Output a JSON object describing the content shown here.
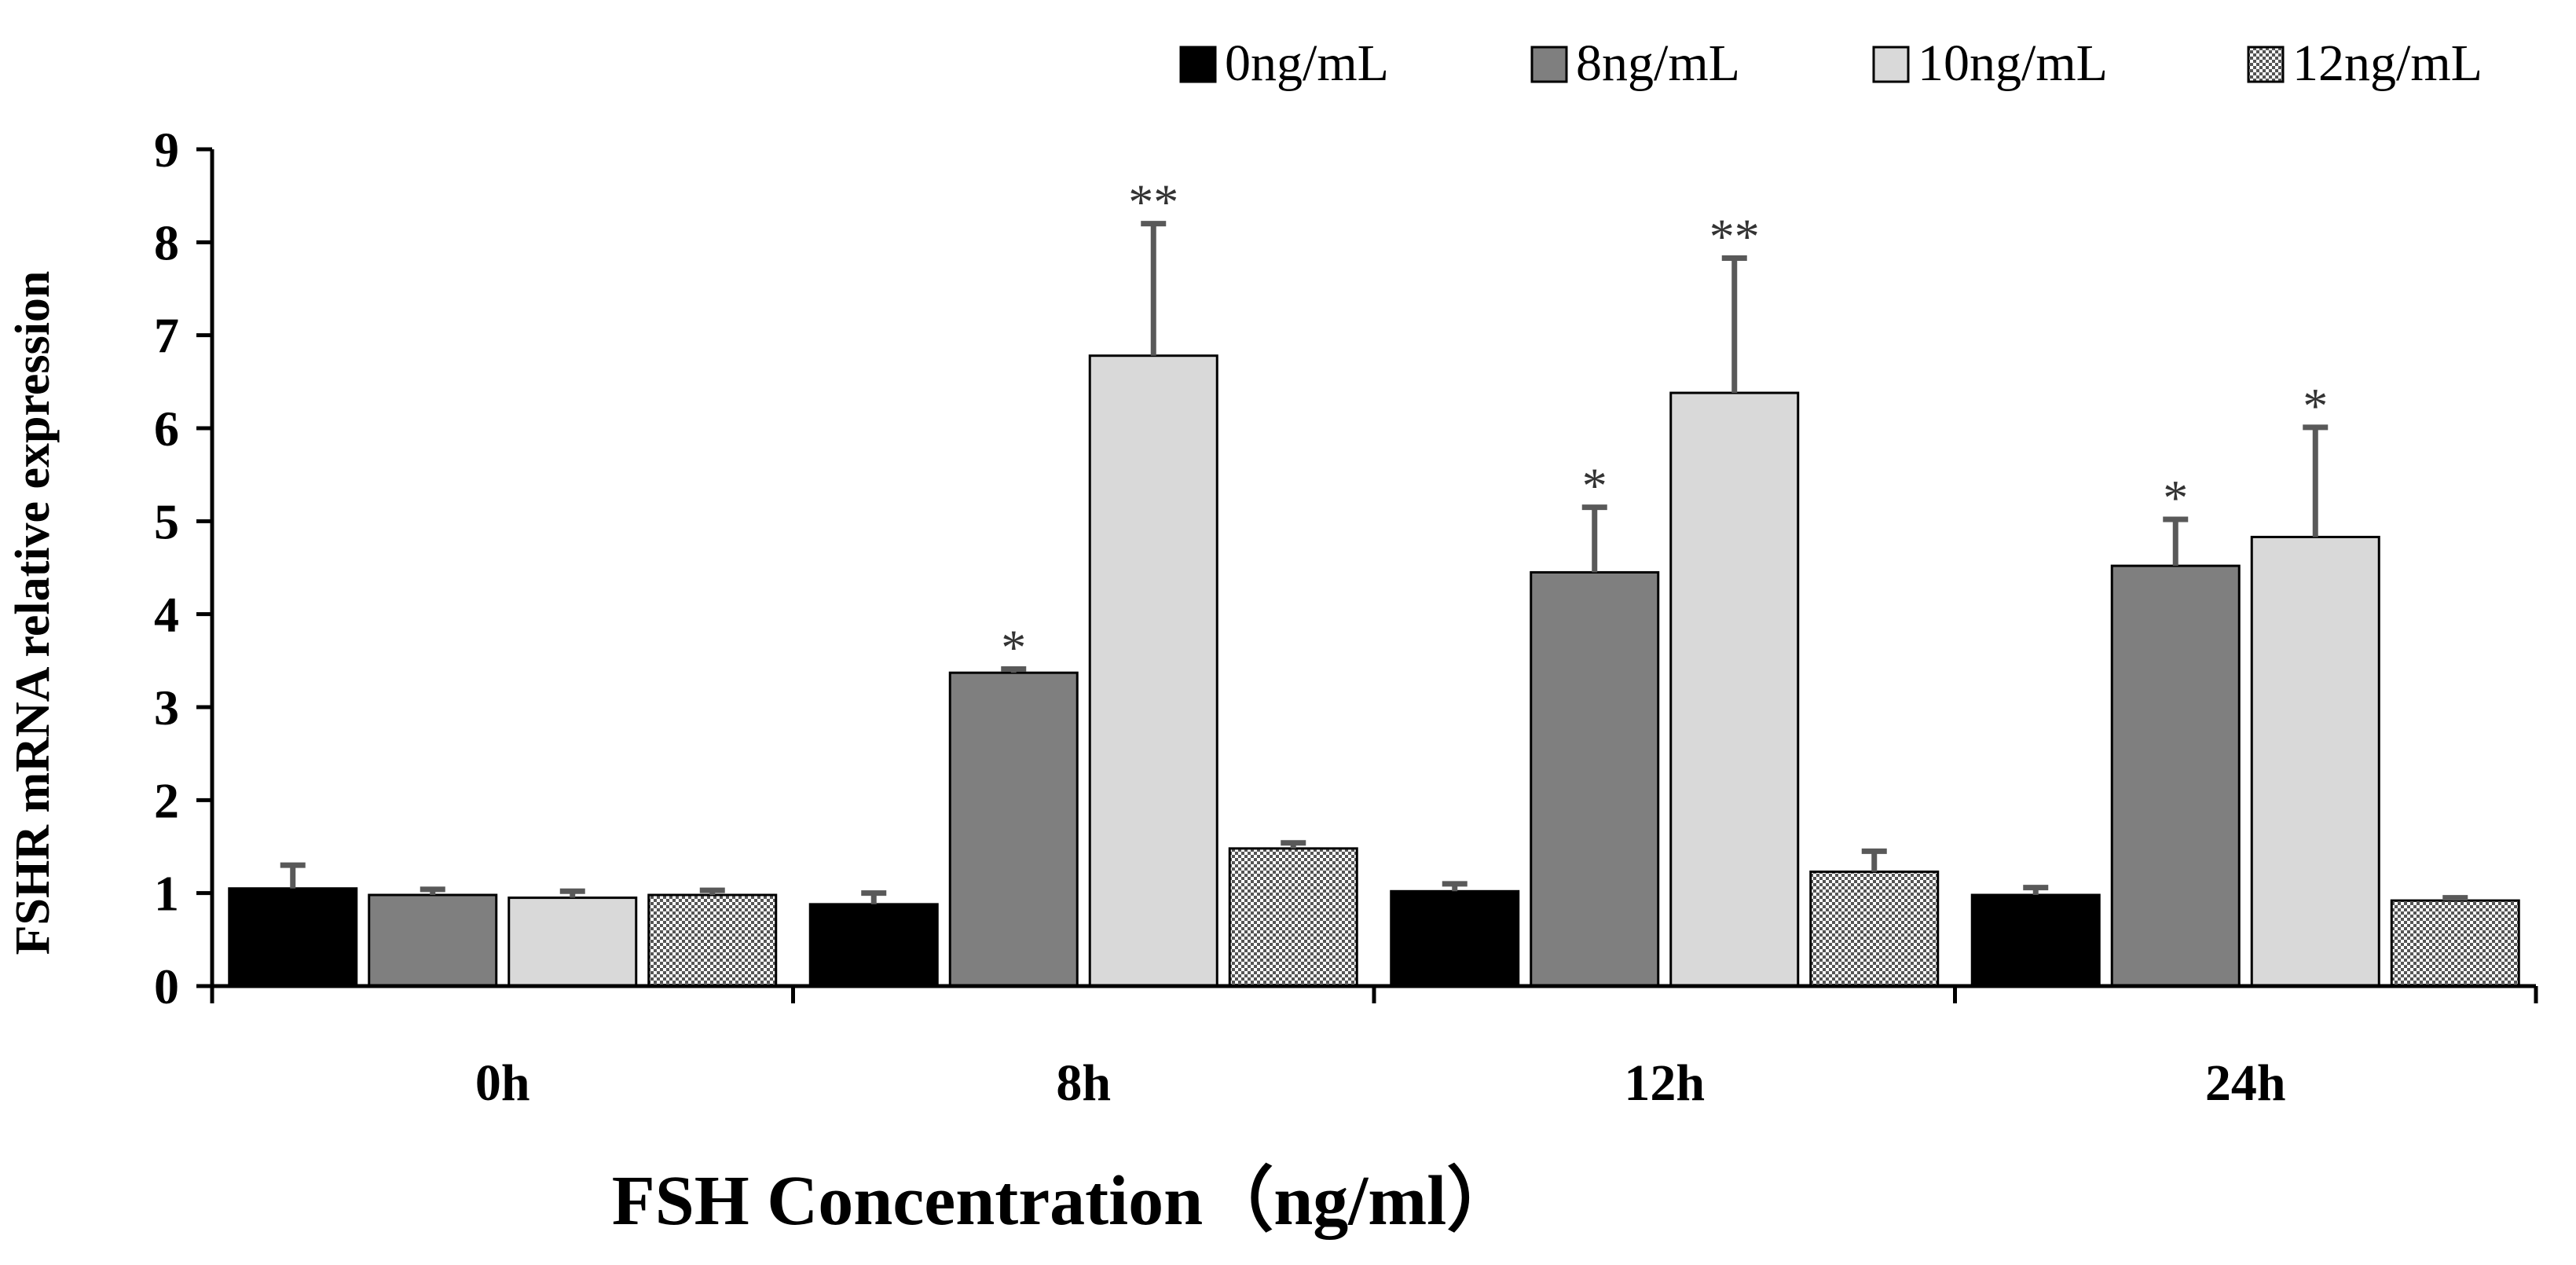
{
  "chart_data": {
    "type": "bar",
    "title": "",
    "xlabel": "FSH Concentration（ng/ml）",
    "ylabel": "FSHR mRNA relative expression",
    "ylim": [
      0,
      9
    ],
    "yticks": [
      "0",
      "1",
      "2",
      "3",
      "4",
      "5",
      "6",
      "7",
      "8",
      "9"
    ],
    "categories": [
      "0h",
      "8h",
      "12h",
      "24h"
    ],
    "legend_position": "top-right",
    "series": [
      {
        "name": "0ng/mL",
        "pattern": "solid",
        "color": "#000000",
        "values": [
          1.05,
          0.88,
          1.02,
          0.98
        ],
        "errors": [
          0.25,
          0.12,
          0.08,
          0.08
        ],
        "annotations": [
          "",
          "",
          "",
          ""
        ]
      },
      {
        "name": "8ng/mL",
        "pattern": "solid",
        "color": "#7f7f7f",
        "values": [
          0.98,
          3.37,
          4.45,
          4.52
        ],
        "errors": [
          0.06,
          0.04,
          0.7,
          0.5
        ],
        "annotations": [
          "",
          "*",
          "*",
          "*"
        ]
      },
      {
        "name": "10ng/mL",
        "pattern": "solid",
        "color": "#d9d9d9",
        "values": [
          0.95,
          6.78,
          6.38,
          4.83
        ],
        "errors": [
          0.07,
          1.42,
          1.45,
          1.18
        ],
        "annotations": [
          "",
          "**",
          "**",
          "*"
        ]
      },
      {
        "name": "12ng/mL",
        "pattern": "dotted",
        "color": "#ffffff",
        "values": [
          0.98,
          1.48,
          1.23,
          0.92
        ],
        "errors": [
          0.05,
          0.06,
          0.22,
          0.03
        ],
        "annotations": [
          "",
          "",
          "",
          ""
        ]
      }
    ]
  }
}
